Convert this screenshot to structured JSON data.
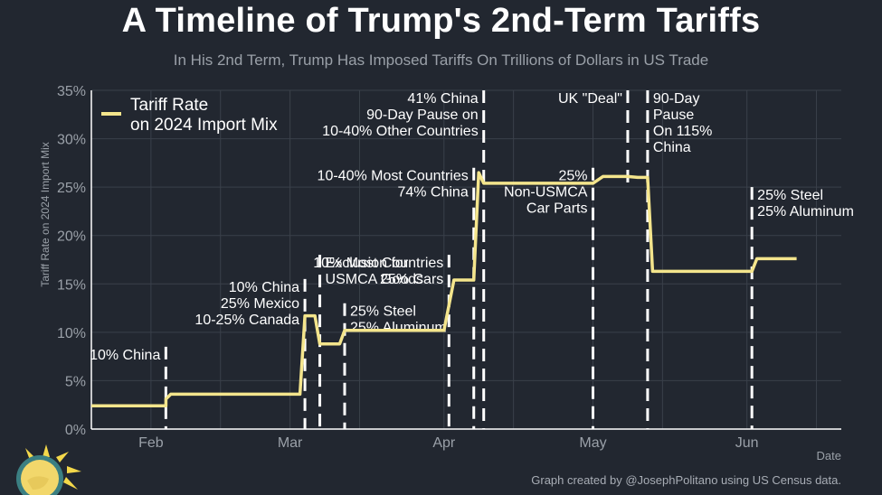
{
  "title": "A Timeline of Trump's 2nd-Term Tariffs",
  "subtitle": "In His 2nd Term, Trump Has Imposed Tariffs On Trillions of Dollars in US Trade",
  "credit": "Graph created by @JosephPolitano using US Census data.",
  "colors": {
    "background": "#222730",
    "line": "#f4e58c",
    "grid": "#3a404a",
    "axis": "#ffffff",
    "tick_label": "#9aa0a8",
    "annotation": "#ffffff"
  },
  "chart_data": {
    "type": "line",
    "xlabel": "Date",
    "ylabel": "Tariff Rate on 2024 Import Mix",
    "ylim": [
      0,
      35
    ],
    "yticks": [
      "0%",
      "5%",
      "10%",
      "15%",
      "20%",
      "25%",
      "30%",
      "35%"
    ],
    "xlim": [
      "2025-01-20",
      "2025-06-20"
    ],
    "xticks": [
      {
        "date": "2025-02-01",
        "label": "Feb"
      },
      {
        "date": "2025-03-01",
        "label": "Mar"
      },
      {
        "date": "2025-04-01",
        "label": "Apr"
      },
      {
        "date": "2025-05-01",
        "label": "May"
      },
      {
        "date": "2025-06-01",
        "label": "Jun"
      }
    ],
    "grid": true,
    "legend_position": "top-left",
    "series": [
      {
        "name": "Tariff Rate\non 2024 Import Mix",
        "points": [
          {
            "x": "2025-01-20",
            "y": 2.4
          },
          {
            "x": "2025-02-04",
            "y": 2.4
          },
          {
            "x": "2025-02-04",
            "y": 3.1
          },
          {
            "x": "2025-02-05",
            "y": 3.6
          },
          {
            "x": "2025-03-03",
            "y": 3.6
          },
          {
            "x": "2025-03-04",
            "y": 11.7
          },
          {
            "x": "2025-03-06",
            "y": 11.7
          },
          {
            "x": "2025-03-07",
            "y": 8.8
          },
          {
            "x": "2025-03-11",
            "y": 8.8
          },
          {
            "x": "2025-03-12",
            "y": 10.2
          },
          {
            "x": "2025-04-01",
            "y": 10.2
          },
          {
            "x": "2025-04-03",
            "y": 15.4
          },
          {
            "x": "2025-04-07",
            "y": 15.4
          },
          {
            "x": "2025-04-08",
            "y": 26.5
          },
          {
            "x": "2025-04-09",
            "y": 25.4
          },
          {
            "x": "2025-05-01",
            "y": 25.4
          },
          {
            "x": "2025-05-03",
            "y": 26.1
          },
          {
            "x": "2025-05-08",
            "y": 26.1
          },
          {
            "x": "2025-05-10",
            "y": 26.0
          },
          {
            "x": "2025-05-12",
            "y": 26.0
          },
          {
            "x": "2025-05-13",
            "y": 16.3
          },
          {
            "x": "2025-06-02",
            "y": 16.3
          },
          {
            "x": "2025-06-03",
            "y": 17.6
          },
          {
            "x": "2025-06-11",
            "y": 17.6
          }
        ]
      }
    ],
    "events": [
      {
        "date": "2025-02-04",
        "from": 0,
        "to": 8.5,
        "text": "10% China",
        "anchor": "end",
        "lines": [
          "10% China"
        ]
      },
      {
        "date": "2025-03-04",
        "from": 0,
        "to": 15.5,
        "anchor": "end",
        "lines": [
          "10% China",
          "25% Mexico",
          "10-25% Canada"
        ]
      },
      {
        "date": "2025-03-07",
        "from": 0,
        "to": 18,
        "anchor": "start",
        "lines": [
          "Exclusion for",
          "USMCA Goods"
        ]
      },
      {
        "date": "2025-03-12",
        "from": 0,
        "to": 13,
        "anchor": "start",
        "lines": [
          "25% Steel",
          "25% Aluminum"
        ]
      },
      {
        "date": "2025-04-02",
        "from": 0,
        "to": 18,
        "anchor": "end",
        "lines": [
          "10% Most Countries",
          "25% Cars"
        ]
      },
      {
        "date": "2025-04-07",
        "from": 0,
        "to": 27,
        "anchor": "end",
        "lines": [
          "10-40% Most Countries",
          "74% China"
        ]
      },
      {
        "date": "2025-04-09",
        "from": 0,
        "to": 35,
        "anchor": "end",
        "lines": [
          "41% China",
          "90-Day Pause on",
          "10-40% Other Countries"
        ]
      },
      {
        "date": "2025-05-01",
        "from": 0,
        "to": 27,
        "anchor": "end",
        "lines": [
          "25%",
          "Non-USMCA",
          "Car Parts"
        ]
      },
      {
        "date": "2025-05-08",
        "from": 25,
        "to": 35,
        "anchor": "end",
        "lines": [
          "UK \"Deal\""
        ]
      },
      {
        "date": "2025-05-12",
        "from": 0,
        "to": 35,
        "anchor": "start",
        "lines": [
          "90-Day",
          "Pause",
          "On 115%",
          "China"
        ]
      },
      {
        "date": "2025-06-02",
        "from": 0,
        "to": 25,
        "anchor": "start",
        "lines": [
          "25% Steel",
          "25% Aluminum"
        ]
      }
    ]
  }
}
